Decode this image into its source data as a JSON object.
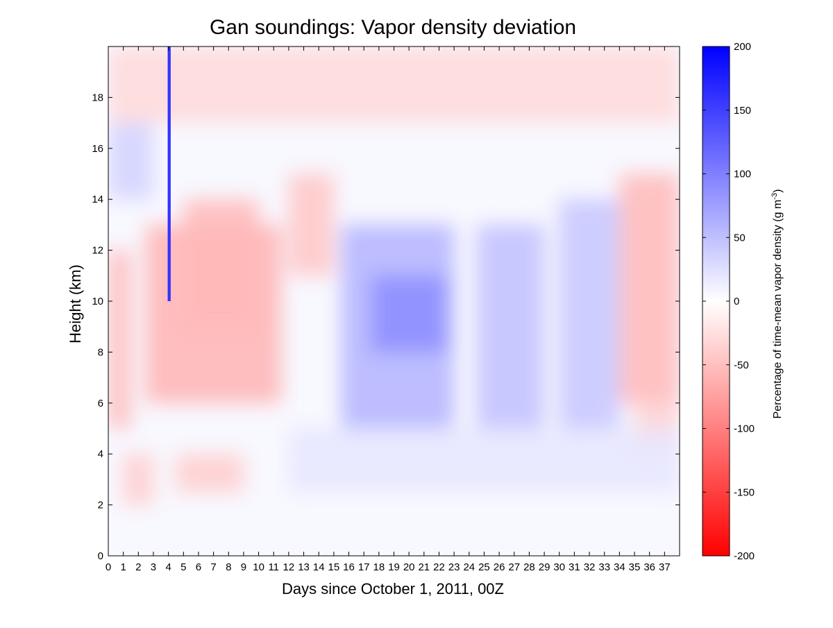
{
  "chart_data": {
    "type": "heatmap",
    "title": "Gan soundings:  Vapor density deviation",
    "xlabel": "Days since October 1, 2011, 00Z",
    "ylabel": "Height (km)",
    "colorbar_label_main": "Percentage of time-mean vapor density (g m",
    "colorbar_label_sup": "-3",
    "colorbar_label_close": ")",
    "xlim": [
      0,
      38
    ],
    "ylim": [
      0,
      20
    ],
    "clim": [
      -200,
      200
    ],
    "x_ticks": [
      "0",
      "1",
      "2",
      "3",
      "4",
      "5",
      "6",
      "7",
      "8",
      "9",
      "10",
      "11",
      "12",
      "13",
      "14",
      "15",
      "16",
      "17",
      "18",
      "19",
      "20",
      "21",
      "22",
      "23",
      "24",
      "25",
      "26",
      "27",
      "28",
      "29",
      "30",
      "31",
      "32",
      "33",
      "34",
      "35",
      "36",
      "37"
    ],
    "y_ticks": [
      "0",
      "2",
      "4",
      "6",
      "8",
      "10",
      "12",
      "14",
      "16",
      "18"
    ],
    "colorbar_ticks": [
      "200",
      "150",
      "100",
      "50",
      "0",
      "-50",
      "-100",
      "-150",
      "-200"
    ],
    "colormap": {
      "negative": "#ff0000",
      "zero": "#ffffff",
      "positive": "#0000ff"
    },
    "regions": [
      {
        "x": [
          0,
          1.5
        ],
        "y": [
          5,
          12
        ],
        "value": -55
      },
      {
        "x": [
          2.5,
          11.5
        ],
        "y": [
          6,
          13
        ],
        "value": -60
      },
      {
        "x": [
          5,
          10
        ],
        "y": [
          9,
          14
        ],
        "value": -55
      },
      {
        "x": [
          1,
          3
        ],
        "y": [
          2,
          4
        ],
        "value": -40
      },
      {
        "x": [
          4.5,
          9
        ],
        "y": [
          2.5,
          4
        ],
        "value": -40
      },
      {
        "x": [
          12,
          15
        ],
        "y": [
          11,
          15
        ],
        "value": -45
      },
      {
        "x": [
          34,
          38
        ],
        "y": [
          6,
          15
        ],
        "value": -55
      },
      {
        "x": [
          35,
          38
        ],
        "y": [
          4,
          6
        ],
        "value": -35
      },
      {
        "x": [
          15.5,
          23
        ],
        "y": [
          5,
          13
        ],
        "value": 60
      },
      {
        "x": [
          17.5,
          22.5
        ],
        "y": [
          8,
          11
        ],
        "value": 90
      },
      {
        "x": [
          24.5,
          29
        ],
        "y": [
          5,
          13
        ],
        "value": 50
      },
      {
        "x": [
          30,
          34
        ],
        "y": [
          5,
          14
        ],
        "value": 45
      },
      {
        "x": [
          0,
          3
        ],
        "y": [
          14,
          17
        ],
        "value": 35
      },
      {
        "x": [
          12,
          38
        ],
        "y": [
          2.5,
          5
        ],
        "value": 20
      },
      {
        "x": [
          0,
          38
        ],
        "y": [
          17,
          20
        ],
        "value": -30
      },
      {
        "x": [
          3.95,
          4.15
        ],
        "y": [
          10,
          20
        ],
        "value": 160
      }
    ]
  }
}
